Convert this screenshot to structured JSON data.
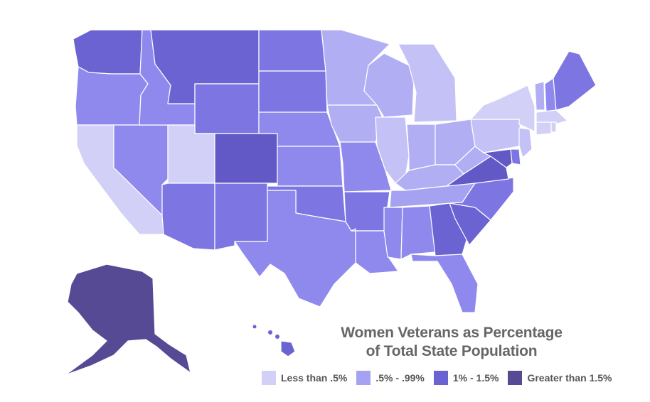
{
  "title_line1": "Women Veterans as Percentage",
  "title_line2": "of Total State Population",
  "legend": [
    {
      "label": "Less than .5%",
      "color": "#d2d0f7"
    },
    {
      "label": ".5% - .99%",
      "color": "#a6a2f2"
    },
    {
      "label": "1% - 1.5%",
      "color": "#6b63d2"
    },
    {
      "label": "Greater than 1.5%",
      "color": "#574a95"
    }
  ],
  "state_colors": {
    "WA": "#6b63d2",
    "OR": "#8f89ee",
    "CA": "#d2d0f7",
    "NV": "#8f89ee",
    "ID": "#8f89ee",
    "MT": "#6b63d2",
    "WY": "#7d76e2",
    "UT": "#d2d0f7",
    "AZ": "#7d76e2",
    "CO": "#6259c6",
    "NM": "#7d76e2",
    "ND": "#7d76e2",
    "SD": "#7d76e2",
    "NE": "#8f89ee",
    "KS": "#8f89ee",
    "OK": "#7d76e2",
    "TX": "#8f89ee",
    "MN": "#b2aef4",
    "IA": "#b2aef4",
    "MO": "#8f89ee",
    "AR": "#7d76e2",
    "LA": "#8f89ee",
    "WI": "#b2aef4",
    "IL": "#c4c1f6",
    "MI": "#c4c1f6",
    "IN": "#b2aef4",
    "OH": "#b2aef4",
    "KY": "#b2aef4",
    "TN": "#a6a2f2",
    "MS": "#8f89ee",
    "AL": "#8f89ee",
    "GA": "#6b63d2",
    "FL": "#8f89ee",
    "SC": "#6b63d2",
    "NC": "#7d76e2",
    "VA": "#6259c6",
    "WV": "#b2aef4",
    "PA": "#c4c1f6",
    "NY": "#d2d0f7",
    "VT": "#b2aef4",
    "NH": "#8f89ee",
    "ME": "#7d76e2",
    "MA": "#d2d0f7",
    "CT": "#d2d0f7",
    "RI": "#d2d0f7",
    "NJ": "#c4c1f6",
    "DE": "#7d76e2",
    "MD": "#6259c6",
    "AK": "#574a95",
    "HI": "#6b63d2"
  }
}
